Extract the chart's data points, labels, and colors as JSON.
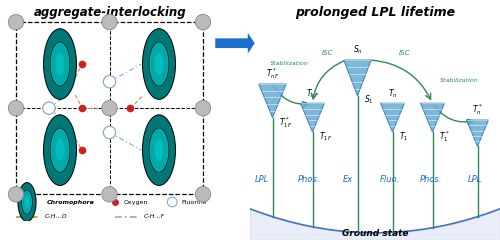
{
  "title_left": "aggregate-interlocking",
  "title_right": "prolonged LPL lifetime",
  "arrow_color": "#1a6fcc",
  "stem_color": "#2e8b57",
  "isc_arrow_color": "#2e8b57",
  "funnel_fill": "#6baed6",
  "funnel_edge": "#2171b5",
  "ground_curve_color": "#4472c4",
  "label_color": "#4472c4",
  "oxygen_color": "#cc2222",
  "fluorine_outline": "#88aacc",
  "chromophore_outer": "#007777",
  "chromophore_inner": "#00aaaa",
  "gray_node": "#bbbbbb",
  "gray_node_edge": "#888888",
  "orange_bond": "#cc8844",
  "blue_bond": "#88aacc",
  "lattice_color": "black",
  "ground_state_label": "Ground state"
}
